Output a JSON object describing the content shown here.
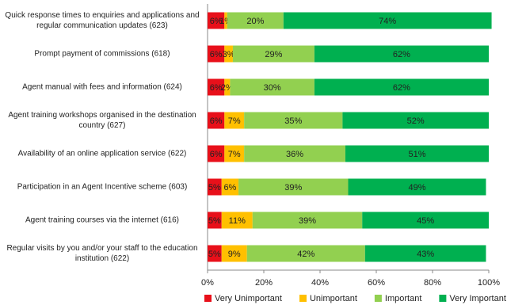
{
  "chart_data": {
    "type": "stacked-bar-horizontal",
    "categories": [
      "Quick response times to enquiries and applications and regular communication updates (623)",
      "Prompt payment of commissions (618)",
      "Agent manual with fees and information (624)",
      "Agent training workshops organised in the destination country (627)",
      "Availability of an online application service (622)",
      "Participation in an Agent Incentive scheme (603)",
      "Agent training courses via the internet (616)",
      "Regular visits by you and/or your staff to the education institution (622)"
    ],
    "series": [
      {
        "name": "Very Unimportant",
        "color": "#e8101a",
        "values": [
          6,
          6,
          6,
          6,
          6,
          5,
          5,
          5
        ],
        "value_labels": [
          "6%",
          "6%",
          "6%",
          "6%",
          "6%",
          "5%",
          "5%",
          "5%"
        ]
      },
      {
        "name": "Unimportant",
        "color": "#ffc000",
        "values": [
          1,
          3,
          2,
          7,
          7,
          6,
          11,
          9
        ],
        "value_labels": [
          "1%",
          "3%",
          "2%",
          "7%",
          "7%",
          "6%",
          "11%",
          "9%"
        ]
      },
      {
        "name": "Important",
        "color": "#92d050",
        "values": [
          20,
          29,
          30,
          35,
          36,
          39,
          39,
          42
        ],
        "value_labels": [
          "20%",
          "29%",
          "30%",
          "35%",
          "36%",
          "39%",
          "39%",
          "42%"
        ]
      },
      {
        "name": "Very Important",
        "color": "#00b050",
        "values": [
          74,
          62,
          62,
          52,
          51,
          49,
          45,
          43
        ],
        "value_labels": [
          "74%",
          "62%",
          "62%",
          "52%",
          "51%",
          "49%",
          "45%",
          "43%"
        ]
      }
    ],
    "xlim": [
      0,
      100
    ],
    "xticks": [
      {
        "value": 0,
        "label": "0%"
      },
      {
        "value": 20,
        "label": "20%"
      },
      {
        "value": 40,
        "label": "40%"
      },
      {
        "value": 60,
        "label": "60%"
      },
      {
        "value": 80,
        "label": "80%"
      },
      {
        "value": 100,
        "label": "100%"
      }
    ],
    "legend": "bottom"
  }
}
